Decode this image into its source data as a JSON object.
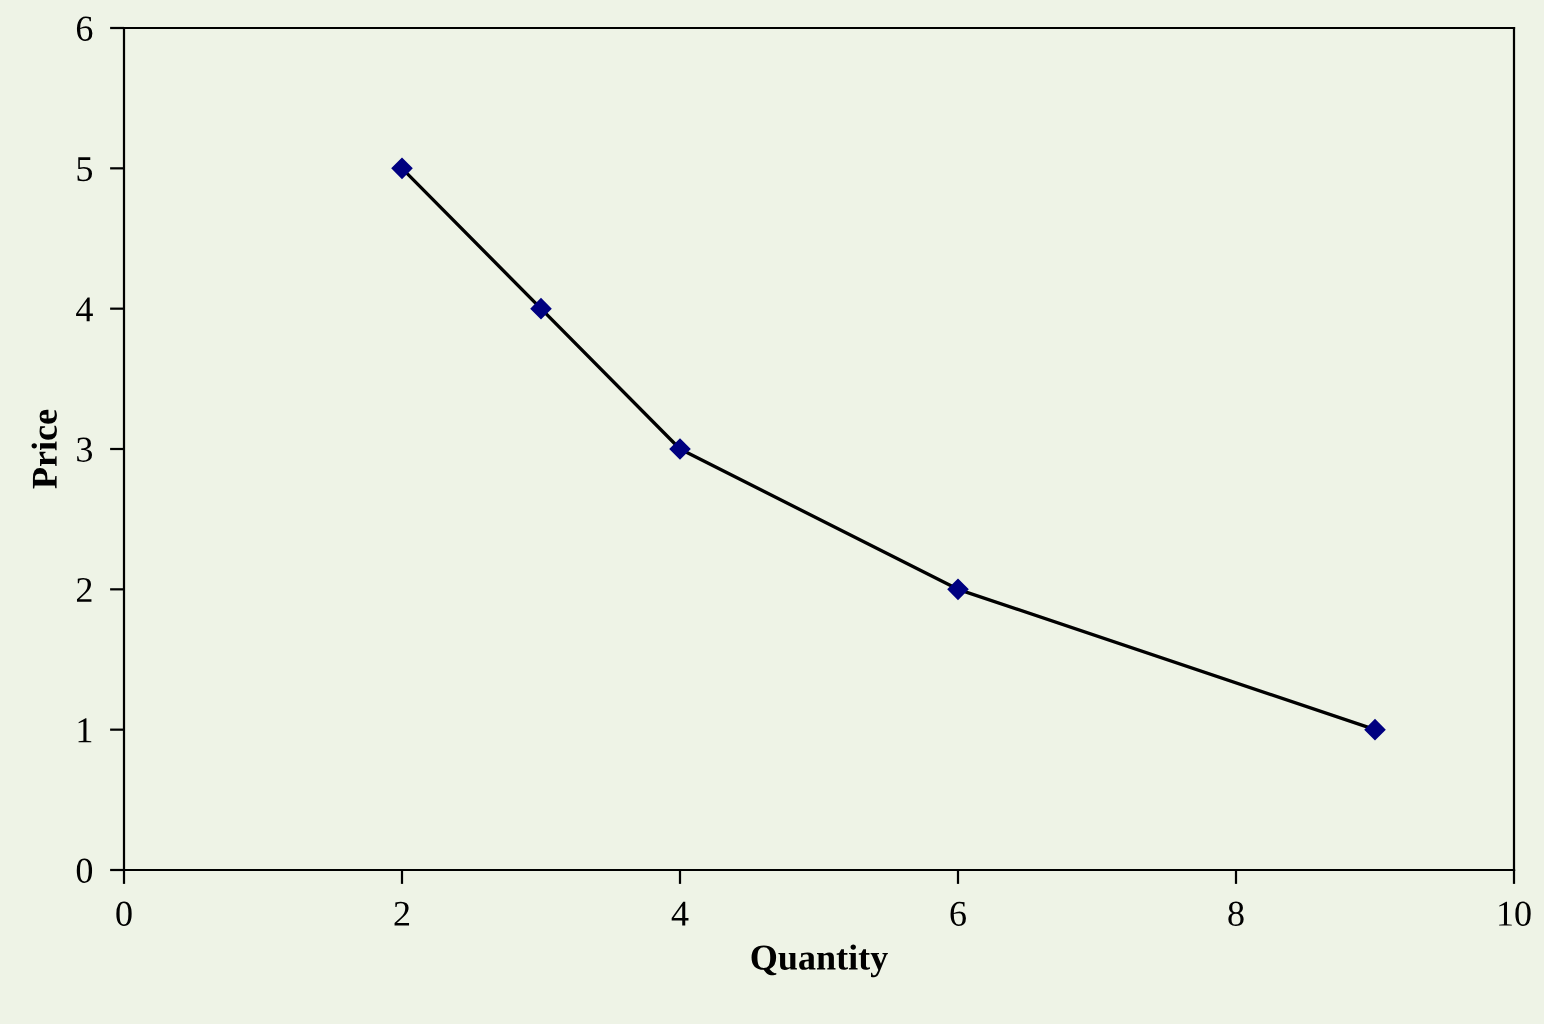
{
  "chart_data": {
    "type": "line",
    "xlabel": "Quantity",
    "ylabel": "Price",
    "x": [
      2,
      3,
      4,
      6,
      9
    ],
    "series": [
      {
        "color": "#000080",
        "values": [
          5,
          4,
          3,
          2,
          1
        ]
      }
    ],
    "xlim": [
      0,
      10
    ],
    "xticks": [
      0,
      2,
      4,
      6,
      8,
      10
    ],
    "ylim": [
      0,
      6
    ],
    "yticks": [
      0,
      1,
      2,
      3,
      4,
      5,
      6
    ],
    "marker": "diamond",
    "line_style": "solid",
    "grid": false,
    "legend": false
  }
}
